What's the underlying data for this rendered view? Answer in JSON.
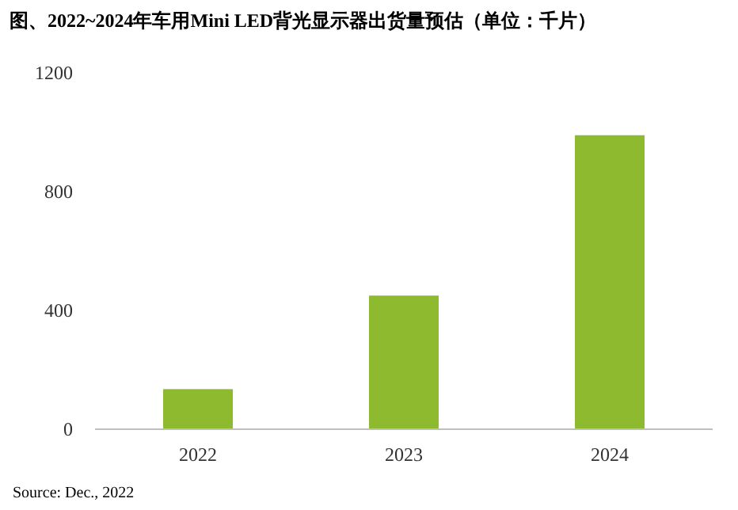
{
  "chart_data": {
    "type": "bar",
    "title": "图、2022~2024年车用Mini LED背光显示器出货量预估（单位：千片）",
    "categories": [
      "2022",
      "2023",
      "2024"
    ],
    "values": [
      135,
      450,
      990
    ],
    "color": "#8dba2f",
    "ylim": [
      0,
      1200
    ],
    "yticks": [
      0,
      400,
      800,
      1200
    ],
    "grid": false,
    "annotations": [
      "Source: Dec., 2022"
    ]
  }
}
